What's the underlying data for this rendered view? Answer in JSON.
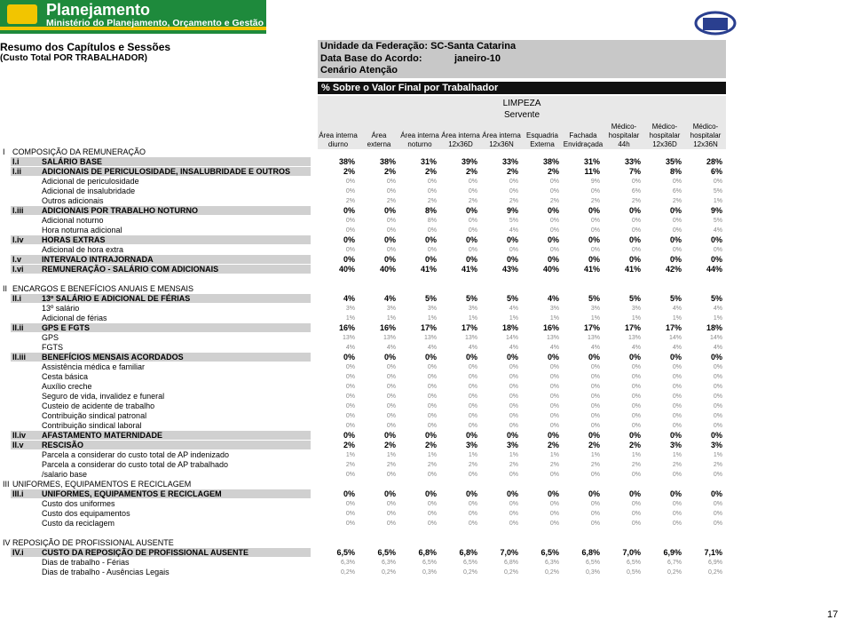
{
  "header": {
    "brand": "Planejamento",
    "ministry": "Ministério do Planejamento, Orçamento e Gestão"
  },
  "left_title": [
    "Resumo dos Capítulos e Sessões",
    "(Custo Total POR TRABALHADOR)"
  ],
  "info": {
    "uf": "Unidade da Federação: SC-Santa Catarina",
    "data_base_label": "Data Base do Acordo:",
    "data_base_value": "janeiro-10",
    "cenario": "Cenário Atenção"
  },
  "bar": "% Sobre o Valor Final por Trabalhador",
  "group": "LIMPEZA",
  "subgroup": "Servente",
  "columns": [
    [
      "Área interna",
      "diurno"
    ],
    [
      "Área",
      "externa"
    ],
    [
      "Área interna",
      "noturno"
    ],
    [
      "Área interna",
      "12x36D"
    ],
    [
      "Área interna",
      "12x36N"
    ],
    [
      "Esquadria",
      "Externa"
    ],
    [
      "Fachada",
      "Envidraçada"
    ],
    [
      "Médico-",
      "hospitalar",
      "44h"
    ],
    [
      "Médico-",
      "hospitalar",
      "12x36D"
    ],
    [
      "Médico-",
      "hospitalar",
      "12x36N"
    ]
  ],
  "sections": [
    {
      "code": "I",
      "title": "COMPOSIÇÃO DA REMUNERAÇÃO",
      "rows": [
        {
          "code": "I.i",
          "label": "SALÁRIO BASE",
          "values": [
            "38%",
            "38%",
            "31%",
            "39%",
            "33%",
            "38%",
            "31%",
            "33%",
            "35%",
            "28%"
          ]
        },
        {
          "code": "I.ii",
          "label": "ADICIONAIS DE PERICULOSIDADE, INSALUBRIDADE E OUTROS",
          "values": [
            "2%",
            "2%",
            "2%",
            "2%",
            "2%",
            "2%",
            "11%",
            "7%",
            "8%",
            "6%"
          ]
        },
        {
          "label": "Adicional de periculosidade",
          "values": [
            "0%",
            "0%",
            "0%",
            "0%",
            "0%",
            "0%",
            "9%",
            "0%",
            "0%",
            "0%"
          ]
        },
        {
          "label": "Adicional de insalubridade",
          "values": [
            "0%",
            "0%",
            "0%",
            "0%",
            "0%",
            "0%",
            "0%",
            "6%",
            "6%",
            "5%"
          ]
        },
        {
          "label": "Outros adicionais",
          "values": [
            "2%",
            "2%",
            "2%",
            "2%",
            "2%",
            "2%",
            "2%",
            "2%",
            "2%",
            "1%"
          ]
        },
        {
          "code": "I.iii",
          "label": "ADICIONAIS POR TRABALHO NOTURNO",
          "values": [
            "0%",
            "0%",
            "8%",
            "0%",
            "9%",
            "0%",
            "0%",
            "0%",
            "0%",
            "9%"
          ]
        },
        {
          "label": "Adicional noturno",
          "values": [
            "0%",
            "0%",
            "8%",
            "0%",
            "5%",
            "0%",
            "0%",
            "0%",
            "0%",
            "5%"
          ]
        },
        {
          "label": "Hora noturna adicional",
          "values": [
            "0%",
            "0%",
            "0%",
            "0%",
            "4%",
            "0%",
            "0%",
            "0%",
            "0%",
            "4%"
          ]
        },
        {
          "code": "I.iv",
          "label": "HORAS EXTRAS",
          "values": [
            "0%",
            "0%",
            "0%",
            "0%",
            "0%",
            "0%",
            "0%",
            "0%",
            "0%",
            "0%"
          ]
        },
        {
          "label": "Adicional de hora extra",
          "values": [
            "0%",
            "0%",
            "0%",
            "0%",
            "0%",
            "0%",
            "0%",
            "0%",
            "0%",
            "0%"
          ]
        },
        {
          "code": "I.v",
          "label": "INTERVALO INTRAJORNADA",
          "values": [
            "0%",
            "0%",
            "0%",
            "0%",
            "0%",
            "0%",
            "0%",
            "0%",
            "0%",
            "0%"
          ]
        },
        {
          "code": "I.vi",
          "label": "REMUNERAÇÃO - SALÁRIO COM ADICIONAIS",
          "values": [
            "40%",
            "40%",
            "41%",
            "41%",
            "43%",
            "40%",
            "41%",
            "41%",
            "42%",
            "44%"
          ]
        }
      ]
    },
    {
      "code": "II",
      "title": "ENCARGOS E BENEFÍCIOS ANUAIS E MENSAIS",
      "rows": [
        {
          "code": "II.i",
          "label": "13º SALÁRIO E ADICIONAL DE FÉRIAS",
          "values": [
            "4%",
            "4%",
            "5%",
            "5%",
            "5%",
            "4%",
            "5%",
            "5%",
            "5%",
            "5%"
          ]
        },
        {
          "label": "13º salário",
          "values": [
            "3%",
            "3%",
            "3%",
            "3%",
            "4%",
            "3%",
            "3%",
            "3%",
            "4%",
            "4%"
          ]
        },
        {
          "label": "Adicional de férias",
          "values": [
            "1%",
            "1%",
            "1%",
            "1%",
            "1%",
            "1%",
            "1%",
            "1%",
            "1%",
            "1%"
          ]
        },
        {
          "code": "II.ii",
          "label": "GPS E FGTS",
          "values": [
            "16%",
            "16%",
            "17%",
            "17%",
            "18%",
            "16%",
            "17%",
            "17%",
            "17%",
            "18%"
          ]
        },
        {
          "label": "GPS",
          "values": [
            "13%",
            "13%",
            "13%",
            "13%",
            "14%",
            "13%",
            "13%",
            "13%",
            "14%",
            "14%"
          ]
        },
        {
          "label": "FGTS",
          "values": [
            "4%",
            "4%",
            "4%",
            "4%",
            "4%",
            "4%",
            "4%",
            "4%",
            "4%",
            "4%"
          ]
        },
        {
          "code": "II.iii",
          "label": "BENEFÍCIOS MENSAIS ACORDADOS",
          "values": [
            "0%",
            "0%",
            "0%",
            "0%",
            "0%",
            "0%",
            "0%",
            "0%",
            "0%",
            "0%"
          ]
        },
        {
          "label": "Assistência médica e familiar",
          "values": [
            "0%",
            "0%",
            "0%",
            "0%",
            "0%",
            "0%",
            "0%",
            "0%",
            "0%",
            "0%"
          ]
        },
        {
          "label": "Cesta básica",
          "values": [
            "0%",
            "0%",
            "0%",
            "0%",
            "0%",
            "0%",
            "0%",
            "0%",
            "0%",
            "0%"
          ]
        },
        {
          "label": "Auxílio creche",
          "values": [
            "0%",
            "0%",
            "0%",
            "0%",
            "0%",
            "0%",
            "0%",
            "0%",
            "0%",
            "0%"
          ]
        },
        {
          "label": "Seguro de vida, invalidez e funeral",
          "values": [
            "0%",
            "0%",
            "0%",
            "0%",
            "0%",
            "0%",
            "0%",
            "0%",
            "0%",
            "0%"
          ]
        },
        {
          "label": "Custeio de acidente de trabalho",
          "values": [
            "0%",
            "0%",
            "0%",
            "0%",
            "0%",
            "0%",
            "0%",
            "0%",
            "0%",
            "0%"
          ]
        },
        {
          "label": "Contribuição sindical patronal",
          "values": [
            "0%",
            "0%",
            "0%",
            "0%",
            "0%",
            "0%",
            "0%",
            "0%",
            "0%",
            "0%"
          ]
        },
        {
          "label": "Contribuição sindical laboral",
          "values": [
            "0%",
            "0%",
            "0%",
            "0%",
            "0%",
            "0%",
            "0%",
            "0%",
            "0%",
            "0%"
          ]
        },
        {
          "code": "II.iv",
          "label": "AFASTAMENTO MATERNIDADE",
          "values": [
            "0%",
            "0%",
            "0%",
            "0%",
            "0%",
            "0%",
            "0%",
            "0%",
            "0%",
            "0%"
          ]
        },
        {
          "code": "II.v",
          "label": "RESCISÃO",
          "values": [
            "2%",
            "2%",
            "2%",
            "3%",
            "3%",
            "2%",
            "2%",
            "2%",
            "3%",
            "3%"
          ]
        },
        {
          "label": "Parcela a considerar do custo total de AP indenizado",
          "values": [
            "1%",
            "1%",
            "1%",
            "1%",
            "1%",
            "1%",
            "1%",
            "1%",
            "1%",
            "1%"
          ]
        },
        {
          "label": "Parcela a considerar do custo total de AP trabalhado",
          "values": [
            "2%",
            "2%",
            "2%",
            "2%",
            "2%",
            "2%",
            "2%",
            "2%",
            "2%",
            "2%"
          ]
        },
        {
          "label": "/salario base",
          "values": [
            "0%",
            "0%",
            "0%",
            "0%",
            "0%",
            "0%",
            "0%",
            "0%",
            "0%",
            "0%"
          ]
        }
      ]
    },
    {
      "code": "III",
      "title": "UNIFORMES, EQUIPAMENTOS E RECICLAGEM",
      "rows": [
        {
          "code": "III.i",
          "label": "UNIFORMES, EQUIPAMENTOS E RECICLAGEM",
          "values": [
            "0%",
            "0%",
            "0%",
            "0%",
            "0%",
            "0%",
            "0%",
            "0%",
            "0%",
            "0%"
          ]
        },
        {
          "label": "Custo dos uniformes",
          "values": [
            "0%",
            "0%",
            "0%",
            "0%",
            "0%",
            "0%",
            "0%",
            "0%",
            "0%",
            "0%"
          ]
        },
        {
          "label": "Custo dos equipamentos",
          "values": [
            "0%",
            "0%",
            "0%",
            "0%",
            "0%",
            "0%",
            "0%",
            "0%",
            "0%",
            "0%"
          ]
        },
        {
          "label": "Custo da reciclagem",
          "values": [
            "0%",
            "0%",
            "0%",
            "0%",
            "0%",
            "0%",
            "0%",
            "0%",
            "0%",
            "0%"
          ]
        }
      ]
    },
    {
      "code": "IV",
      "title": "REPOSIÇÃO DE PROFISSIONAL AUSENTE",
      "rows": [
        {
          "code": "IV.i",
          "label": "CUSTO DA REPOSIÇÃO DE PROFISSIONAL AUSENTE",
          "values": [
            "6,5%",
            "6,5%",
            "6,8%",
            "6,8%",
            "7,0%",
            "6,5%",
            "6,8%",
            "7,0%",
            "6,9%",
            "7,1%"
          ]
        },
        {
          "label": "Dias de trabalho - Férias",
          "values": [
            "6,3%",
            "6,3%",
            "6,5%",
            "6,5%",
            "6,8%",
            "6,3%",
            "6,5%",
            "6,5%",
            "6,7%",
            "6,9%"
          ]
        },
        {
          "label": "Dias de trabalho - Ausências Legais",
          "values": [
            "0,2%",
            "0,2%",
            "0,3%",
            "0,2%",
            "0,2%",
            "0,2%",
            "0,3%",
            "0,5%",
            "0,2%",
            "0,2%"
          ]
        }
      ]
    }
  ],
  "page_number": "17"
}
